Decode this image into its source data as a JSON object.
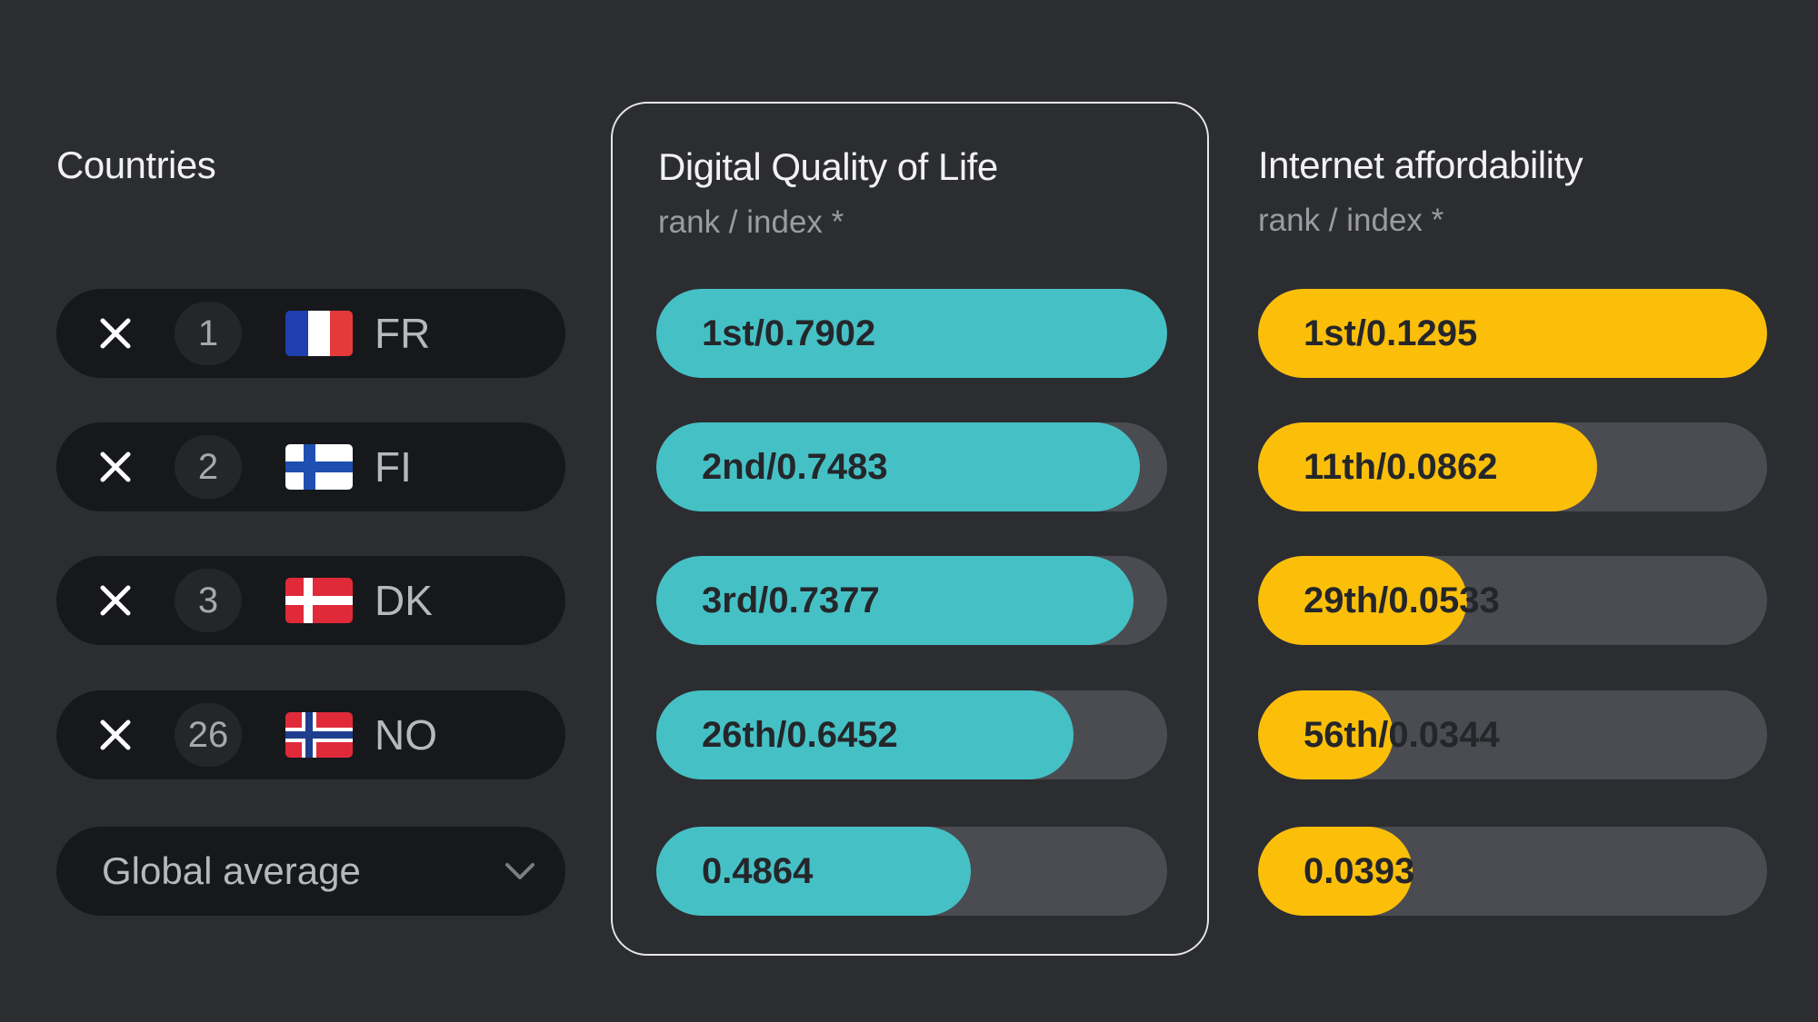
{
  "columns": {
    "countries": {
      "title": "Countries"
    },
    "dqol": {
      "title": "Digital Quality of Life",
      "subtitle": "rank / index *",
      "color": "#45c1c6"
    },
    "affordability": {
      "title": "Internet affordability",
      "subtitle": "rank / index *",
      "color": "#fbbf0a"
    }
  },
  "countries": [
    {
      "rank": "1",
      "code": "FR",
      "flag_icon": "france-flag-icon"
    },
    {
      "rank": "2",
      "code": "FI",
      "flag_icon": "finland-flag-icon"
    },
    {
      "rank": "3",
      "code": "DK",
      "flag_icon": "denmark-flag-icon"
    },
    {
      "rank": "26",
      "code": "NO",
      "flag_icon": "norway-flag-icon"
    }
  ],
  "comparison": {
    "label": "Global average",
    "icon": "chevron-down-icon"
  },
  "dqol_rows": [
    {
      "label": "1st/0.7902",
      "value": 0.7902
    },
    {
      "label": "2nd/0.7483",
      "value": 0.7483
    },
    {
      "label": "3rd/0.7377",
      "value": 0.7377
    },
    {
      "label": "26th/0.6452",
      "value": 0.6452
    },
    {
      "label": "0.4864",
      "value": 0.4864
    }
  ],
  "affordability_rows": [
    {
      "label": "1st/0.1295",
      "value": 0.1295
    },
    {
      "label": "11th/0.0862",
      "value": 0.0862
    },
    {
      "label": "29th/0.0533",
      "value": 0.0533
    },
    {
      "label": "56th/0.0344",
      "value": 0.0344
    },
    {
      "label": "0.0393",
      "value": 0.0393
    }
  ]
}
